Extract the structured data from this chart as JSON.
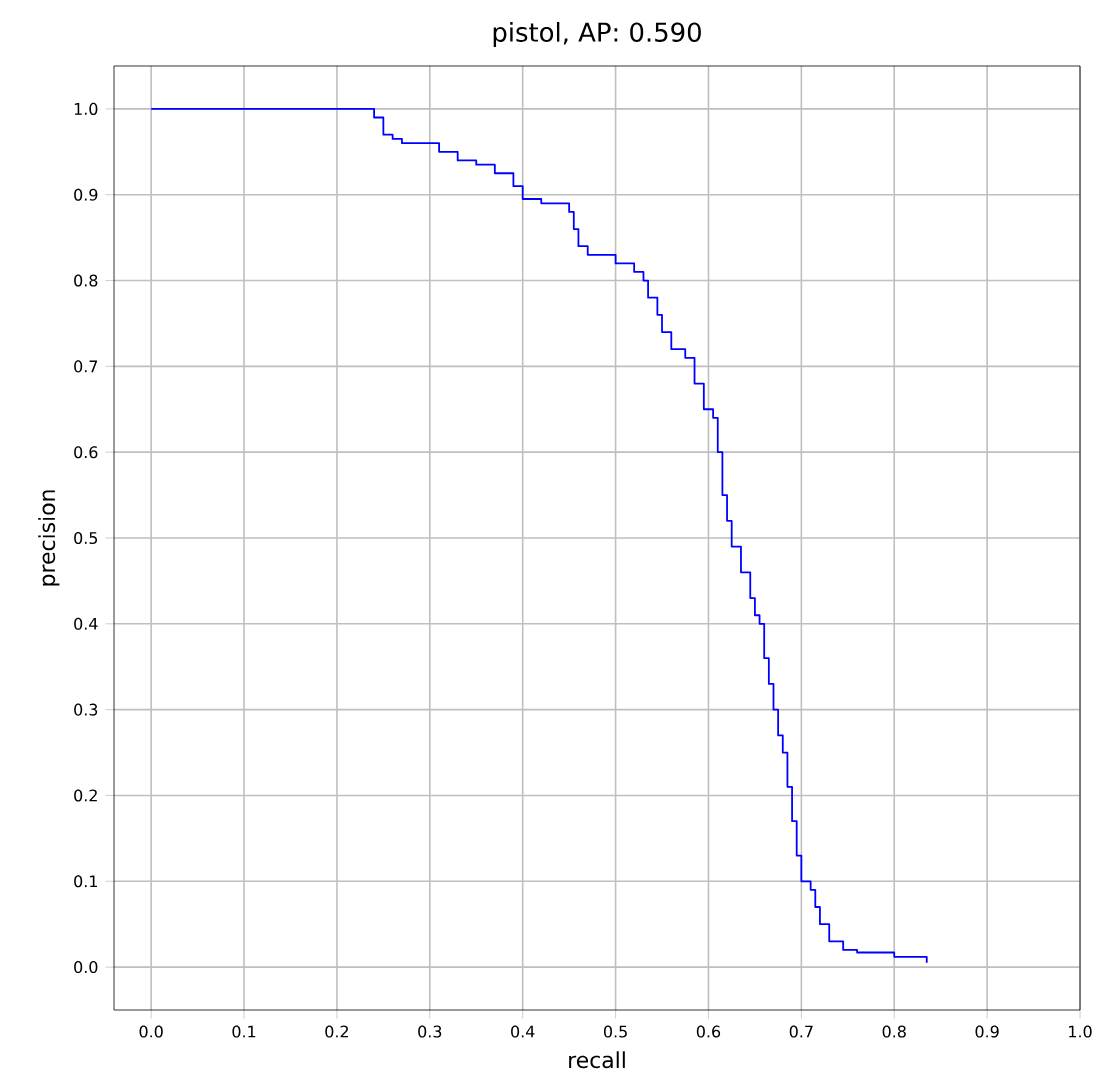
{
  "chart_data": {
    "type": "step",
    "title": "pistol, AP: 0.590",
    "xlabel": "recall",
    "ylabel": "precision",
    "x": [
      0,
      0.235,
      0.24,
      0.25,
      0.26,
      0.27,
      0.3,
      0.31,
      0.33,
      0.35,
      0.37,
      0.39,
      0.4,
      0.42,
      0.45,
      0.455,
      0.46,
      0.47,
      0.49,
      0.5,
      0.52,
      0.53,
      0.535,
      0.545,
      0.55,
      0.56,
      0.575,
      0.585,
      0.595,
      0.605,
      0.61,
      0.615,
      0.62,
      0.625,
      0.635,
      0.645,
      0.65,
      0.655,
      0.66,
      0.665,
      0.67,
      0.675,
      0.68,
      0.685,
      0.69,
      0.695,
      0.7,
      0.71,
      0.715,
      0.72,
      0.73,
      0.745,
      0.76,
      0.8,
      0.835
    ],
    "values": [
      1.0,
      1.0,
      0.99,
      0.97,
      0.965,
      0.96,
      0.96,
      0.95,
      0.94,
      0.935,
      0.925,
      0.91,
      0.895,
      0.89,
      0.88,
      0.86,
      0.84,
      0.83,
      0.83,
      0.82,
      0.81,
      0.8,
      0.78,
      0.76,
      0.74,
      0.72,
      0.71,
      0.68,
      0.65,
      0.64,
      0.6,
      0.55,
      0.52,
      0.49,
      0.46,
      0.43,
      0.41,
      0.4,
      0.36,
      0.33,
      0.3,
      0.27,
      0.25,
      0.21,
      0.17,
      0.13,
      0.1,
      0.09,
      0.07,
      0.05,
      0.03,
      0.02,
      0.017,
      0.012,
      0.005
    ],
    "color": "#0000ff",
    "xlim": [
      -0.04,
      1.0
    ],
    "ylim": [
      -0.05,
      1.05
    ],
    "xticks": [
      {
        "value": 0,
        "label": "0.0"
      },
      0.1,
      0.2,
      0.3,
      0.4,
      0.5,
      0.6,
      0.7,
      0.8,
      0.9,
      {
        "value": 1,
        "label": "1.0"
      }
    ],
    "yticks": [
      {
        "value": 0,
        "label": "0.0"
      },
      0.1,
      0.2,
      0.3,
      0.4,
      0.5,
      0.6,
      0.7,
      0.8,
      0.9,
      {
        "value": 1,
        "label": "1.0"
      }
    ],
    "grid": true
  }
}
